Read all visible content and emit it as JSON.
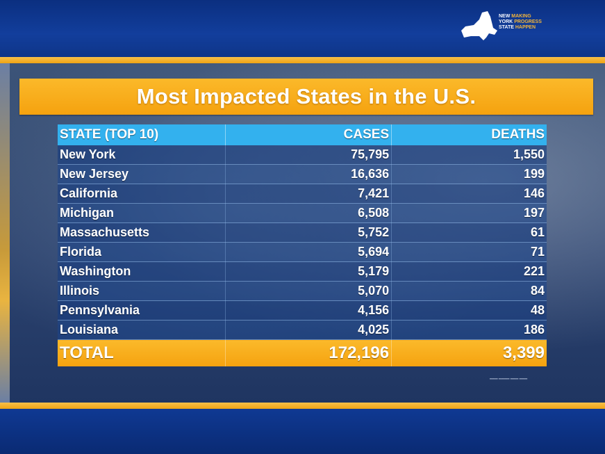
{
  "logo": {
    "line1": "New",
    "line2": "York",
    "line3": "State",
    "tag1": "Making",
    "tag2": "Progress",
    "tag3": "Happen"
  },
  "title": "Most Impacted States in the U.S.",
  "table": {
    "headers": [
      "STATE (TOP 10)",
      "CASES",
      "DEATHS"
    ],
    "rows": [
      [
        "New York",
        "75,795",
        "1,550"
      ],
      [
        "New Jersey",
        "16,636",
        "199"
      ],
      [
        "California",
        "7,421",
        "146"
      ],
      [
        "Michigan",
        "6,508",
        "197"
      ],
      [
        "Massachusetts",
        "5,752",
        "61"
      ],
      [
        "Florida",
        "5,694",
        "71"
      ],
      [
        "Washington",
        "5,179",
        "221"
      ],
      [
        "Illinois",
        "5,070",
        "84"
      ],
      [
        "Pennsylvania",
        "4,156",
        "48"
      ],
      [
        "Louisiana",
        "4,025",
        "186"
      ]
    ],
    "total": [
      "TOTAL",
      "172,196",
      "3,399"
    ]
  },
  "colors": {
    "brand_blue": "#0d3a94",
    "gold": "#f5a20f",
    "header_cyan": "#33b1ee"
  }
}
